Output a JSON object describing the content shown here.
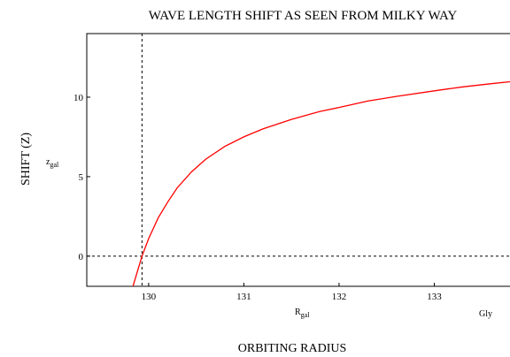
{
  "chart_data": {
    "type": "line",
    "title": "WAVE LENGTH SHIFT AS SEEN FROM MILKY WAY",
    "xlabel": "ORBITING RADIUS",
    "ylabel": "SHIFT (Z)",
    "x_var_main": "R",
    "x_var_sub": "gal",
    "y_var_main": "z",
    "y_var_sub": "gal",
    "x_unit": "Gly",
    "xlim": [
      129.35,
      134.0
    ],
    "ylim": [
      -1.9,
      14.0
    ],
    "x_ticks": [
      130,
      131,
      132,
      133
    ],
    "y_ticks": [
      0,
      5,
      10
    ],
    "grid": false,
    "colors": {
      "series": "#ff0000",
      "axes": "#000000"
    },
    "markers": {
      "vertical_x": 129.93,
      "horizontal_y": 0
    },
    "series": [
      {
        "x": [
          129.83,
          129.93,
          130.0,
          130.1,
          130.2,
          130.3,
          130.45,
          130.6,
          130.8,
          131.0,
          131.2,
          131.5,
          131.8,
          132.0,
          132.3,
          132.6,
          133.0,
          133.3,
          133.6,
          134.0
        ],
        "y": [
          -2.0,
          0.0,
          1.1,
          2.4,
          3.4,
          4.3,
          5.3,
          6.1,
          6.9,
          7.5,
          8.0,
          8.6,
          9.1,
          9.35,
          9.75,
          10.05,
          10.4,
          10.65,
          10.85,
          11.1
        ]
      }
    ]
  }
}
